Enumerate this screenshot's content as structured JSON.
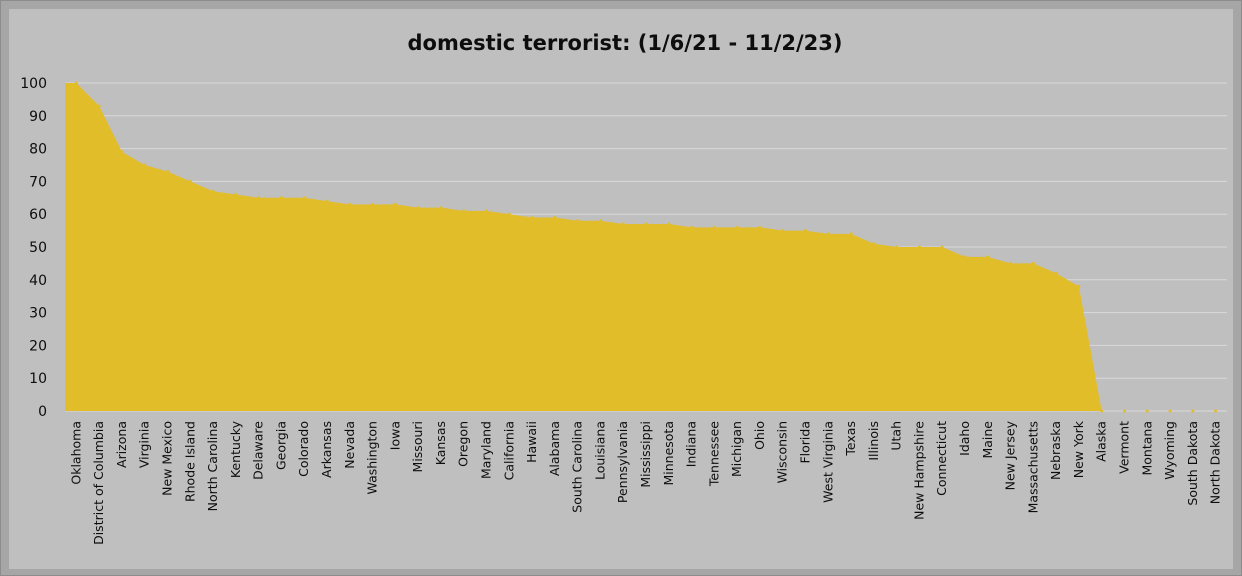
{
  "chart_data": {
    "type": "area",
    "title": "domestic terrorist: (1/6/21 - 11/2/23)",
    "xlabel": "",
    "ylabel": "",
    "ylim": [
      0,
      100
    ],
    "yticks": [
      0,
      10,
      20,
      30,
      40,
      50,
      60,
      70,
      80,
      90,
      100
    ],
    "grid": true,
    "fill_color": "#e2bd2a",
    "categories": [
      "Oklahoma",
      "District of Columbia",
      "Arizona",
      "Virginia",
      "New Mexico",
      "Rhode Island",
      "North Carolina",
      "Kentucky",
      "Delaware",
      "Georgia",
      "Colorado",
      "Arkansas",
      "Nevada",
      "Washington",
      "Iowa",
      "Missouri",
      "Kansas",
      "Oregon",
      "Maryland",
      "California",
      "Hawaii",
      "Alabama",
      "South Carolina",
      "Louisiana",
      "Pennsylvania",
      "Mississippi",
      "Minnesota",
      "Indiana",
      "Tennessee",
      "Michigan",
      "Ohio",
      "Wisconsin",
      "Florida",
      "West Virginia",
      "Texas",
      "Illinois",
      "Utah",
      "New Hampshire",
      "Connecticut",
      "Idaho",
      "Maine",
      "New Jersey",
      "Massachusetts",
      "Nebraska",
      "New York",
      "Alaska",
      "Vermont",
      "Montana",
      "Wyoming",
      "South Dakota",
      "North Dakota"
    ],
    "values": [
      100,
      93,
      79,
      75,
      73,
      70,
      67,
      66,
      65,
      65,
      65,
      64,
      63,
      63,
      63,
      62,
      62,
      61,
      61,
      60,
      59,
      59,
      58,
      58,
      57,
      57,
      57,
      56,
      56,
      56,
      56,
      55,
      55,
      54,
      54,
      51,
      50,
      50,
      50,
      47,
      47,
      45,
      45,
      42,
      38,
      0,
      0,
      0,
      0,
      0,
      0
    ]
  }
}
